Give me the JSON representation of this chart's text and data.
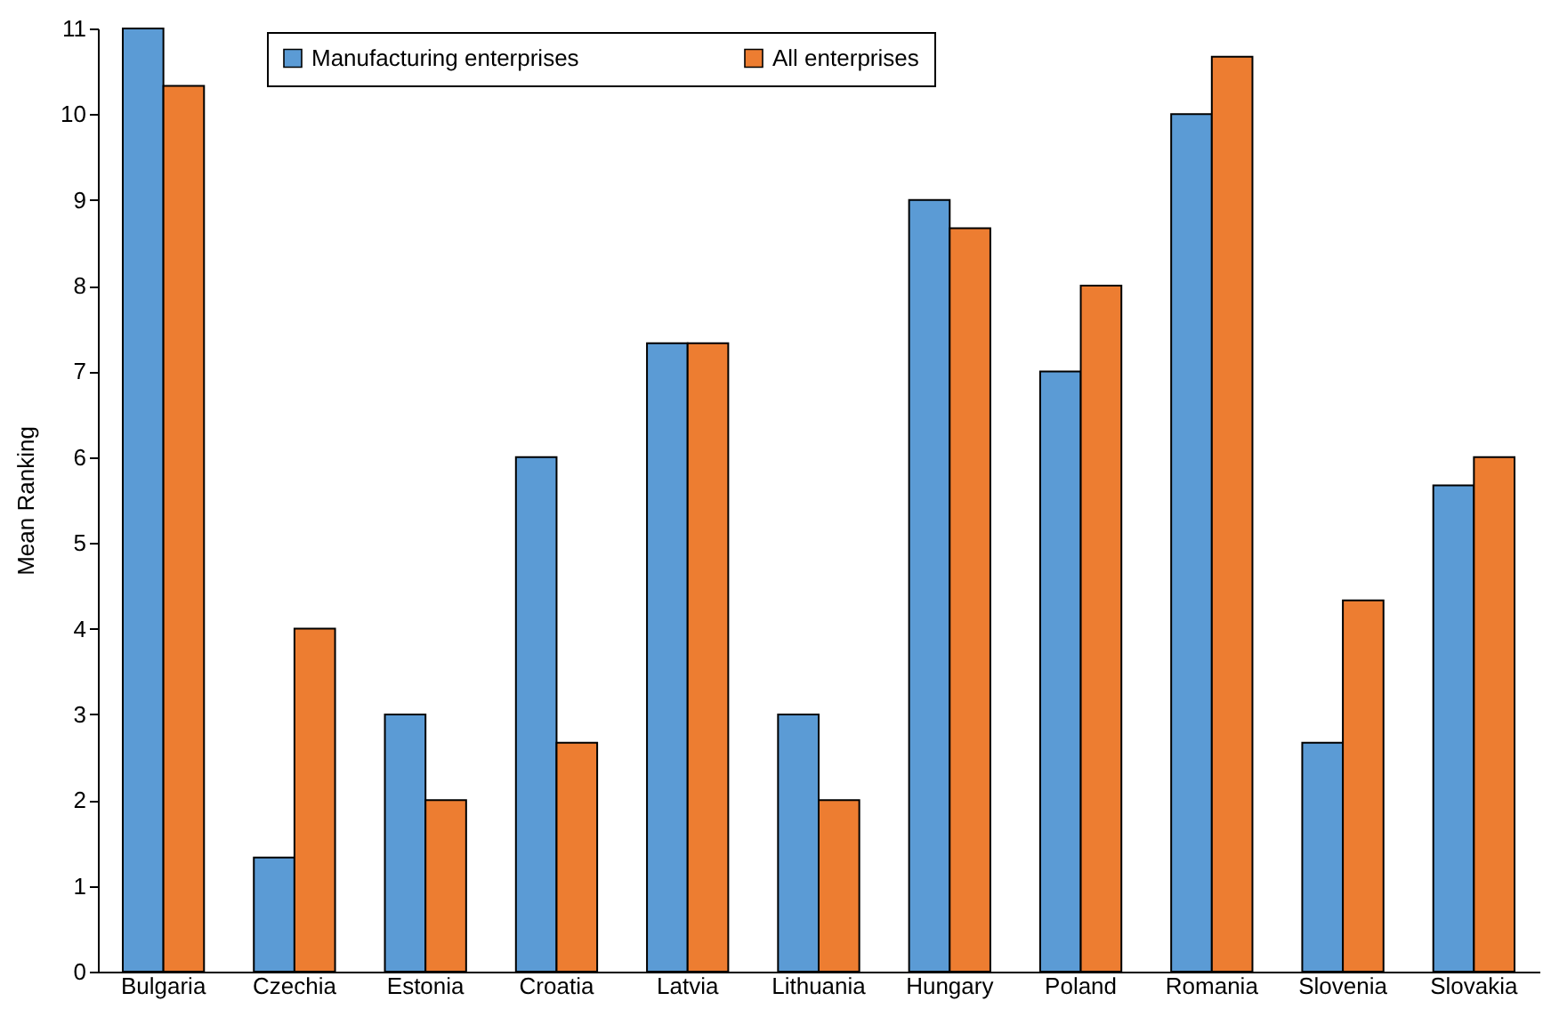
{
  "chart_data": {
    "type": "bar",
    "ylabel": "Mean Ranking",
    "categories": [
      "Bulgaria",
      "Czechia",
      "Estonia",
      "Croatia",
      "Latvia",
      "Lithuania",
      "Hungary",
      "Poland",
      "Romania",
      "Slovenia",
      "Slovakia"
    ],
    "series": [
      {
        "name": "Manufacturing enterprises",
        "color": "#5b9bd5",
        "values": [
          11,
          1.33,
          3,
          6,
          7.33,
          3,
          9,
          7,
          10,
          2.67,
          5.67
        ]
      },
      {
        "name": "All enterprises",
        "color": "#ed7d31",
        "values": [
          10.33,
          4,
          2,
          2.67,
          7.33,
          2,
          8.67,
          8,
          10.67,
          4.33,
          6
        ]
      }
    ],
    "ylim": [
      0,
      11
    ],
    "yticks": [
      0,
      1,
      2,
      3,
      4,
      5,
      6,
      7,
      8,
      9,
      10,
      11
    ],
    "grid": false,
    "legend": "top"
  }
}
